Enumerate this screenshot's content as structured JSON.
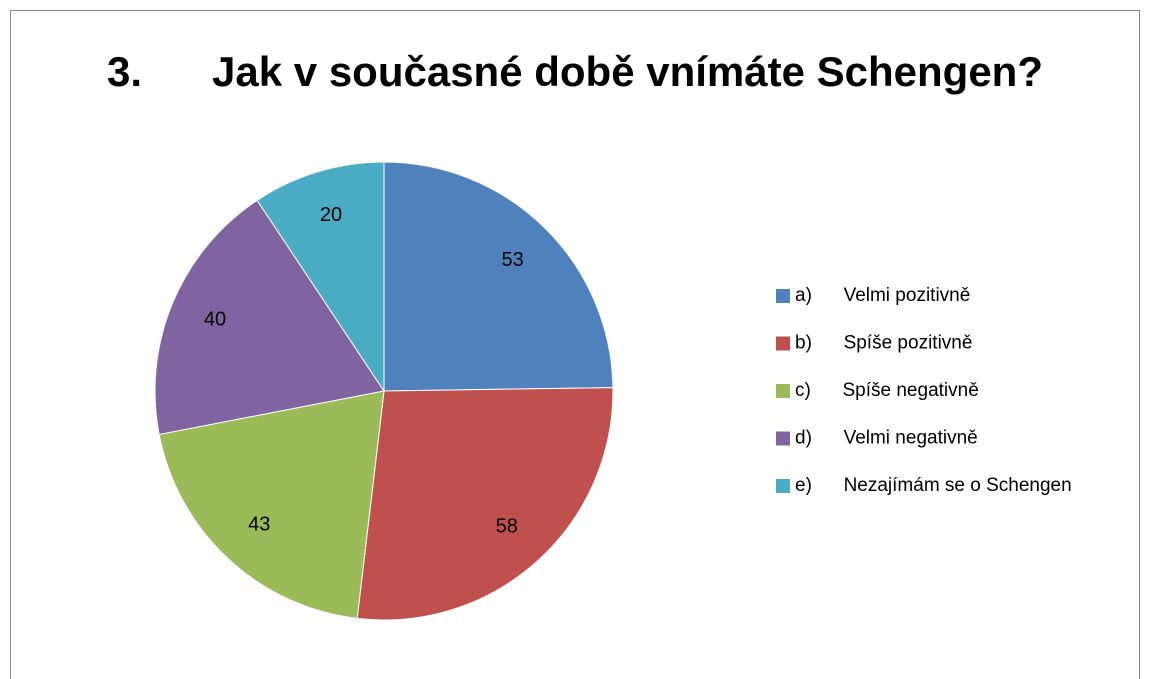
{
  "chart_data": {
    "type": "pie",
    "title": "3.      Jak v současné době vnímáte Schengen?",
    "categories": [
      "a)      Velmi pozitivně",
      "b)      Spíše pozitivně",
      "c)      Spíše negativně",
      "d)      Velmi negativně",
      "e)      Nezajímám se o Schengen"
    ],
    "values": [
      53,
      58,
      43,
      40,
      20
    ],
    "colors": [
      "#4f81bd",
      "#c0504d",
      "#9bbb59",
      "#8064a2",
      "#4bacc6"
    ],
    "legend": "right"
  }
}
